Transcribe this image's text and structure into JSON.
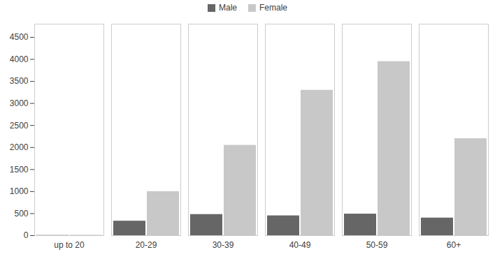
{
  "chart_data": {
    "type": "bar",
    "categories": [
      "up to 20",
      "20-29",
      "30-39",
      "40-49",
      "50-59",
      "60+"
    ],
    "series": [
      {
        "name": "Male",
        "color": "#666666",
        "values": [
          5,
          330,
          480,
          450,
          490,
          400
        ]
      },
      {
        "name": "Female",
        "color": "#c8c8c8",
        "values": [
          10,
          1000,
          2050,
          3300,
          3950,
          2200
        ]
      }
    ],
    "ylim": [
      0,
      4800
    ],
    "yticks": [
      0,
      500,
      1000,
      1500,
      2000,
      2500,
      3000,
      3500,
      4000,
      4500
    ],
    "grid": false,
    "legend": "top"
  }
}
